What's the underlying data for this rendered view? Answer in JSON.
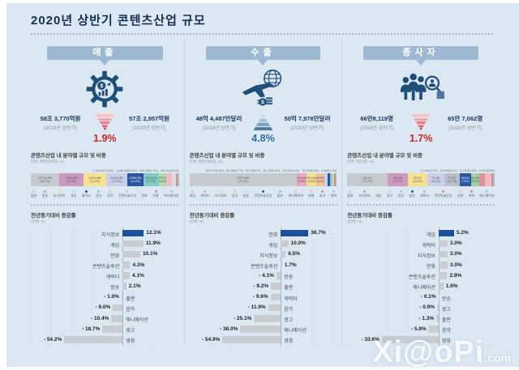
{
  "page": {
    "title": "2020년 상반기 콘텐츠산업 규모",
    "watermark_main": "Xi@oPi",
    "watermark_suffix": ".com",
    "accent_navy": "#1f4e79",
    "decrease_red": "#c9252d",
    "increase_blue": "#2f6da8"
  },
  "chart_data": {
    "type": "infographic",
    "columns": [
      {
        "id": "sales",
        "header": "매출",
        "icon": "gear-money-icon",
        "prev_value": "58조 3,770억원",
        "prev_period": "(2019년 상반기)",
        "curr_value": "57조 2,957억원",
        "curr_period": "(2020년 상반기)",
        "change_pct": "1.9%",
        "change_direction": "down",
        "change_color": "#c9252d",
        "share_chart": {
          "type": "stacked-bar",
          "title": "콘텐츠산업 내 분야별 규모 및 비중",
          "unit": "단위: 백만원(비중, %)",
          "segments": [
            {
              "label": "출판",
              "value": "10,714,296",
              "pct": 18.7,
              "color": "#c7cacd"
            },
            {
              "label": "방송",
              "value": "9,396,495",
              "pct": 16.4,
              "color": "#c999c0"
            },
            {
              "label": "지식정보",
              "value": "8,423,468",
              "pct": 14.7,
              "color": "#f6e18e"
            },
            {
              "label": "게임",
              "value": "8,194,285",
              "pct": 14.3,
              "color": "#c9cfe8"
            },
            {
              "label": "캐릭터",
              "value": "5,958,753",
              "pct": 10.4,
              "color": "#2a55a2"
            },
            {
              "label": "광고",
              "value": "5,844,161",
              "pct": 10.2,
              "color": "#7fccc3"
            },
            {
              "label": "음악",
              "value": "2,979,377",
              "pct": 5.2,
              "color": "#b5d9ab"
            },
            {
              "label": "콘텐츠솔루션",
              "value": "2,196,067",
              "pct": 3.8,
              "color": "#f2bac4"
            },
            {
              "label": "영화",
              "value": "1,488,688",
              "pct": 2.6,
              "color": "#d8dadd"
            },
            {
              "label": "만화",
              "value": "646,180",
              "pct": 1.1,
              "color": "#cd8d98"
            },
            {
              "label": "애니메이션",
              "value": "260,211",
              "pct": 0.5,
              "color": "#b9bcc0"
            }
          ]
        },
        "growth_chart": {
          "type": "bar",
          "title": "전년동기대비 증감률",
          "unit": "(단위: %)",
          "rows": [
            {
              "label": "지식정보",
              "value": 12.1
            },
            {
              "label": "게임",
              "value": 11.9
            },
            {
              "label": "만화",
              "value": 10.1
            },
            {
              "label": "콘텐츠솔루션",
              "value": 4.3
            },
            {
              "label": "캐릭터",
              "value": 4.1
            },
            {
              "label": "방송",
              "value": 2.1
            },
            {
              "label": "출판",
              "value": -1.0
            },
            {
              "label": "음악",
              "value": -9.0
            },
            {
              "label": "애니메이션",
              "value": -10.4
            },
            {
              "label": "광고",
              "value": -18.7
            },
            {
              "label": "영화",
              "value": -54.2
            }
          ]
        }
      },
      {
        "id": "exports",
        "header": "수출",
        "icon": "airplane-globe-icon",
        "prev_value": "48억 4,487만달러",
        "prev_period": "(2019년 상반기)",
        "curr_value": "50억 7,978만달러",
        "curr_period": "(2020년 상반기)",
        "change_pct": "4.8%",
        "change_direction": "up",
        "change_color": "#2f6da8",
        "share_chart": {
          "type": "stacked-bar",
          "title": "콘텐츠산업 내 분야별 규모 및 비중",
          "unit": "단위: 천달러(비중, %)",
          "segments": [
            {
              "label": "게임",
              "value": "3,673,498",
              "pct": 72.3,
              "color": "#c7cacd"
            },
            {
              "label": "캐릭터",
              "value": "345,425",
              "pct": 6.8,
              "color": "#e9a8bd"
            },
            {
              "label": "지식정보",
              "value": "330,186",
              "pct": 6.5,
              "color": "#f6e18e"
            },
            {
              "label": "음악",
              "value": "259,069",
              "pct": 5.1,
              "color": "#f0c09b"
            },
            {
              "label": "방송",
              "value": "132,074",
              "pct": 2.6,
              "color": "#c9cfe8"
            },
            {
              "label": "콘텐츠솔루션",
              "value": "86,356",
              "pct": 1.7,
              "color": "#2a55a2"
            },
            {
              "label": "출판",
              "value": "50,798",
              "pct": 1.0,
              "color": "#7fccc3"
            },
            {
              "label": "애니메이션",
              "value": "30,479",
              "pct": 0.6,
              "color": "#b5d9ab"
            },
            {
              "label": "만화",
              "value": "20,319",
              "pct": 0.4,
              "color": "#f2bac4"
            },
            {
              "label": "광고",
              "value": "15,239",
              "pct": 0.3,
              "color": "#cd8d98"
            },
            {
              "label": "영화",
              "value": "5,080",
              "pct": 0.1,
              "color": "#b9bcc0"
            }
          ]
        },
        "growth_chart": {
          "type": "bar",
          "title": "전년동기대비 증감률",
          "unit": "(단위: %)",
          "rows": [
            {
              "label": "만화",
              "value": 36.7
            },
            {
              "label": "게임",
              "value": 10.0
            },
            {
              "label": "지식정보",
              "value": 6.5
            },
            {
              "label": "콘텐츠솔루션",
              "value": 1.7
            },
            {
              "label": "방송",
              "value": -4.1
            },
            {
              "label": "출판",
              "value": -9.2
            },
            {
              "label": "캐릭터",
              "value": -9.6
            },
            {
              "label": "음악",
              "value": -11.9
            },
            {
              "label": "광고",
              "value": -25.1
            },
            {
              "label": "애니메이션",
              "value": -38.0
            },
            {
              "label": "영화",
              "value": -54.9
            }
          ]
        }
      },
      {
        "id": "workers",
        "header": "종사자",
        "icon": "people-magnifier-icon",
        "prev_value": "66만8,119명",
        "prev_period": "(2019년 상반기)",
        "curr_value": "65만 7,062명",
        "curr_period": "(2020년 상반기)",
        "change_pct": "1.7%",
        "change_direction": "down",
        "change_color": "#c9252d",
        "share_chart": {
          "type": "stacked-bar",
          "title": "콘텐츠산업 내 분야별 규모 및 비중",
          "unit": "단위: 명(비중, %)",
          "segments": [
            {
              "label": "출판",
              "value": "182,147",
              "pct": 27.7,
              "color": "#c7cacd"
            },
            {
              "label": "지식정보",
              "value": "89,845",
              "pct": 13.7,
              "color": "#cc9ac1"
            },
            {
              "label": "게임",
              "value": "89,157",
              "pct": 13.6,
              "color": "#f6e18e"
            },
            {
              "label": "광고",
              "value": "73,481",
              "pct": 11.2,
              "color": "#c9cfe8"
            },
            {
              "label": "음악",
              "value": "70,410",
              "pct": 10.7,
              "color": "#b8c0cc"
            },
            {
              "label": "방송",
              "value": "49,942",
              "pct": 7.6,
              "color": "#2a55a2"
            },
            {
              "label": "캐릭터",
              "value": "36,138",
              "pct": 5.5,
              "color": "#9ed4a5"
            },
            {
              "label": "콘텐츠솔루션",
              "value": "27,594",
              "pct": 4.2,
              "color": "#e0919c"
            },
            {
              "label": "영화",
              "value": "26,940",
              "pct": 4.1,
              "color": "#f2bac4"
            },
            {
              "label": "만화",
              "value": "10,513",
              "pct": 1.6,
              "color": "#cd8d98"
            },
            {
              "label": "애니메이션",
              "value": "5,257",
              "pct": 0.8,
              "color": "#b9bcc0"
            }
          ]
        },
        "growth_chart": {
          "type": "bar",
          "title": "전년동기대비 증감률",
          "unit": "(단위: %)",
          "rows": [
            {
              "label": "게임",
              "value": 5.2
            },
            {
              "label": "캐릭터",
              "value": 3.0
            },
            {
              "label": "지식정보",
              "value": 3.0
            },
            {
              "label": "만화",
              "value": 3.0
            },
            {
              "label": "콘텐츠솔루션",
              "value": 2.9
            },
            {
              "label": "애니메이션",
              "value": 1.6
            },
            {
              "label": "방송",
              "value": -0.1
            },
            {
              "label": "광고",
              "value": -0.9
            },
            {
              "label": "출판",
              "value": -1.3
            },
            {
              "label": "음악",
              "value": -5.8
            },
            {
              "label": "영화",
              "value": -33.6
            }
          ]
        }
      }
    ]
  }
}
